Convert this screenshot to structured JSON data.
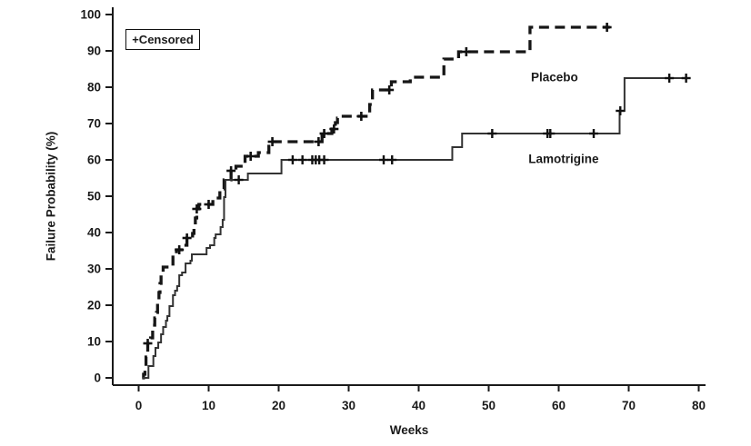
{
  "figure": {
    "background": "#ffffff",
    "axis_color": "#1a1a1a",
    "text_color": "#1a1a1a"
  },
  "chart_data": {
    "type": "line",
    "subtype": "kaplan-meier-step",
    "title": "",
    "xlabel": "Weeks",
    "ylabel": "Failure Probability (%)",
    "xlim": [
      0,
      80
    ],
    "ylim": [
      0,
      100
    ],
    "x_ticks": [
      0,
      10,
      20,
      30,
      40,
      50,
      60,
      70,
      80
    ],
    "y_ticks": [
      0,
      10,
      20,
      30,
      40,
      50,
      60,
      70,
      80,
      90,
      100
    ],
    "grid": false,
    "legend_note": "+Censored",
    "legend_position": "top-left-inside",
    "series": [
      {
        "name": "Placebo",
        "style": "dashed",
        "color": "#161616",
        "points": [
          [
            0.5,
            0
          ],
          [
            0.7,
            1
          ],
          [
            0.9,
            3.25
          ],
          [
            1.05,
            5.75
          ],
          [
            1.3,
            9.5
          ],
          [
            1.7,
            11
          ],
          [
            2.0,
            14.5
          ],
          [
            2.3,
            16.5
          ],
          [
            2.55,
            18
          ],
          [
            2.7,
            21.5
          ],
          [
            2.9,
            23.5
          ],
          [
            3.05,
            26
          ],
          [
            3.2,
            28.25
          ],
          [
            3.5,
            30.5
          ],
          [
            4.9,
            33.25
          ],
          [
            5.4,
            35.25
          ],
          [
            6.5,
            36.5
          ],
          [
            6.9,
            38.5
          ],
          [
            7.7,
            39.75
          ],
          [
            7.9,
            41.5
          ],
          [
            8.1,
            44
          ],
          [
            8.3,
            46.5
          ],
          [
            8.6,
            47.75
          ],
          [
            10.6,
            49.5
          ],
          [
            11.6,
            52
          ],
          [
            12.2,
            54.5
          ],
          [
            13.2,
            57
          ],
          [
            13.9,
            58.25
          ],
          [
            15.2,
            61
          ],
          [
            17.1,
            62
          ],
          [
            18.6,
            65
          ],
          [
            26.2,
            67.25
          ],
          [
            27.6,
            68.5
          ],
          [
            28.1,
            70.25
          ],
          [
            28.4,
            71.5
          ],
          [
            28.7,
            72
          ],
          [
            33.0,
            75.25
          ],
          [
            33.4,
            79.25
          ],
          [
            36.1,
            81.5
          ],
          [
            38.8,
            82.75
          ],
          [
            43.6,
            87.75
          ],
          [
            45.7,
            89.75
          ],
          [
            55.9,
            96.5
          ],
          [
            67.3,
            96.5
          ]
        ],
        "censored": [
          [
            1.3,
            9.5
          ],
          [
            5.8,
            35.25
          ],
          [
            6.9,
            38.5
          ],
          [
            8.3,
            46.5
          ],
          [
            10.0,
            47.75
          ],
          [
            13.2,
            57
          ],
          [
            16.0,
            61
          ],
          [
            19.1,
            65
          ],
          [
            25.7,
            65
          ],
          [
            26.5,
            67.25
          ],
          [
            27.9,
            68.5
          ],
          [
            31.8,
            72
          ],
          [
            35.8,
            79.25
          ],
          [
            46.8,
            89.75
          ],
          [
            66.9,
            96.5
          ]
        ]
      },
      {
        "name": "Lamotrigine",
        "style": "solid",
        "color": "#333333",
        "points": [
          [
            0.5,
            0
          ],
          [
            1.4,
            3.25
          ],
          [
            2.1,
            6
          ],
          [
            2.4,
            8.25
          ],
          [
            2.8,
            9.75
          ],
          [
            3.2,
            12
          ],
          [
            3.5,
            14
          ],
          [
            3.9,
            15.75
          ],
          [
            4.1,
            17
          ],
          [
            4.4,
            19.75
          ],
          [
            4.9,
            22.75
          ],
          [
            5.2,
            24
          ],
          [
            5.5,
            25.25
          ],
          [
            5.8,
            28.25
          ],
          [
            6.2,
            29
          ],
          [
            6.7,
            31.5
          ],
          [
            7.4,
            32.25
          ],
          [
            7.6,
            34
          ],
          [
            9.7,
            35.75
          ],
          [
            10.2,
            36.5
          ],
          [
            10.8,
            38.5
          ],
          [
            11.0,
            39.5
          ],
          [
            11.7,
            41.5
          ],
          [
            12.0,
            43.5
          ],
          [
            12.2,
            49.75
          ],
          [
            12.4,
            54.5
          ],
          [
            15.6,
            56.25
          ],
          [
            20.4,
            60
          ],
          [
            44.8,
            63.5
          ],
          [
            46.2,
            67.25
          ],
          [
            68.7,
            73.5
          ],
          [
            69.4,
            82.5
          ],
          [
            78.5,
            82.5
          ]
        ],
        "censored": [
          [
            14.3,
            54.5
          ],
          [
            22.0,
            60
          ],
          [
            23.4,
            60
          ],
          [
            24.8,
            60
          ],
          [
            25.3,
            60
          ],
          [
            25.8,
            60
          ],
          [
            26.5,
            60
          ],
          [
            35.0,
            60
          ],
          [
            36.2,
            60
          ],
          [
            50.5,
            67.25
          ],
          [
            58.4,
            67.25
          ],
          [
            58.8,
            67.25
          ],
          [
            65.0,
            67.25
          ],
          [
            68.8,
            73.5
          ],
          [
            75.8,
            82.5
          ],
          [
            78.2,
            82.5
          ]
        ]
      }
    ],
    "annotations": [
      {
        "text": "Placebo",
        "week": 59.4,
        "pct": 82.75
      },
      {
        "text": "Lamotrigine",
        "week": 60.7,
        "pct": 60.25
      }
    ]
  }
}
